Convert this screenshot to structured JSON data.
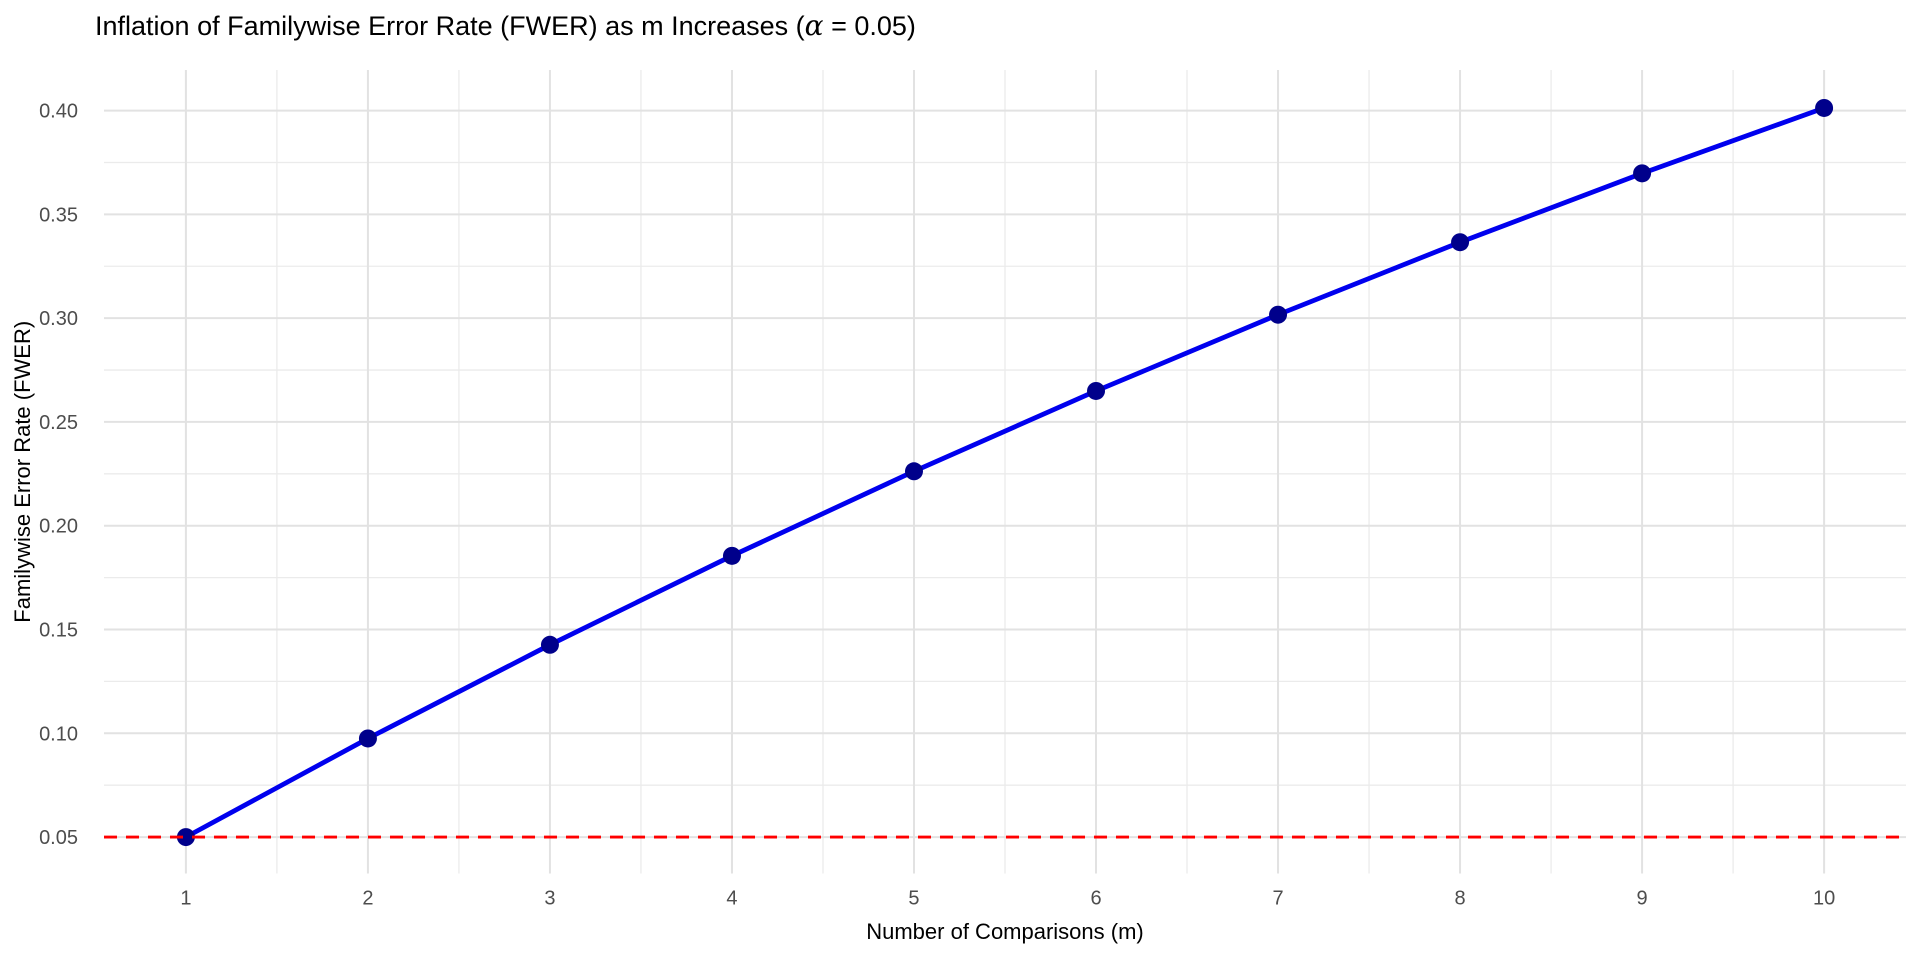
{
  "chart_data": {
    "type": "line",
    "title_full": "Inflation of Familywise Error Rate (FWER) as m Increases (α = 0.05)",
    "title_prefix": "Inflation of Familywise Error Rate (FWER) as m Increases (",
    "title_alpha": "α",
    "title_suffix": " = 0.05)",
    "xlabel": "Number of Comparisons (m)",
    "ylabel": "Familywise Error Rate (FWER)",
    "x": [
      1,
      2,
      3,
      4,
      5,
      6,
      7,
      8,
      9,
      10
    ],
    "y": [
      0.05,
      0.0975,
      0.142625,
      0.185494,
      0.226219,
      0.264908,
      0.301663,
      0.33658,
      0.369751,
      0.401263
    ],
    "x_ticks": {
      "values": [
        1,
        2,
        3,
        4,
        5,
        6,
        7,
        8,
        9,
        10
      ],
      "labels": [
        "1",
        "2",
        "3",
        "4",
        "5",
        "6",
        "7",
        "8",
        "9",
        "10"
      ]
    },
    "y_ticks": {
      "values": [
        0.05,
        0.1,
        0.15,
        0.2,
        0.25,
        0.3,
        0.35,
        0.4
      ],
      "labels": [
        "0.05",
        "0.10",
        "0.15",
        "0.20",
        "0.25",
        "0.30",
        "0.35",
        "0.40"
      ]
    },
    "xlim": [
      0.55,
      10.45
    ],
    "ylim": [
      0.03245,
      0.41955
    ],
    "grid": {
      "major": true,
      "minor": true
    },
    "legend_position": "none",
    "reference_line": {
      "y": 0.05,
      "style": "dashed",
      "color": "#FF0000"
    },
    "colors": {
      "line": "#0000EE",
      "point": "#00008B",
      "grid_major": "#E2E2E2",
      "grid_minor": "#EBEBEB",
      "tick_label": "#4D4D4D",
      "axis_title": "#000000",
      "title": "#000000",
      "background": "#FFFFFF"
    }
  }
}
